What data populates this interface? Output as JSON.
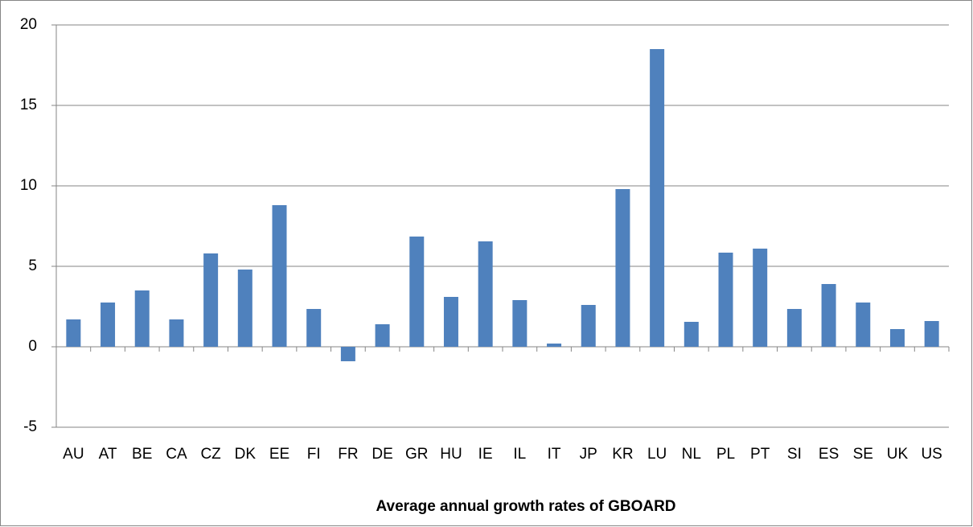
{
  "chart_data": {
    "type": "bar",
    "title": "Average annual growth rates of GBOARD",
    "categories": [
      "AU",
      "AT",
      "BE",
      "CA",
      "CZ",
      "DK",
      "EE",
      "FI",
      "FR",
      "DE",
      "GR",
      "HU",
      "IE",
      "IL",
      "IT",
      "JP",
      "KR",
      "LU",
      "NL",
      "PL",
      "PT",
      "SI",
      "ES",
      "SE",
      "UK",
      "US"
    ],
    "values": [
      1.7,
      2.75,
      3.5,
      1.7,
      5.8,
      4.8,
      8.8,
      2.35,
      -0.9,
      1.4,
      6.85,
      3.1,
      6.55,
      2.9,
      0.2,
      2.6,
      9.8,
      18.5,
      1.55,
      5.85,
      6.1,
      2.35,
      3.9,
      2.75,
      1.1,
      1.6
    ],
    "color": "#4f81bd",
    "ylim": [
      -5,
      20
    ],
    "yticks": [
      -5,
      0,
      5,
      10,
      15,
      20
    ],
    "grid": true
  }
}
